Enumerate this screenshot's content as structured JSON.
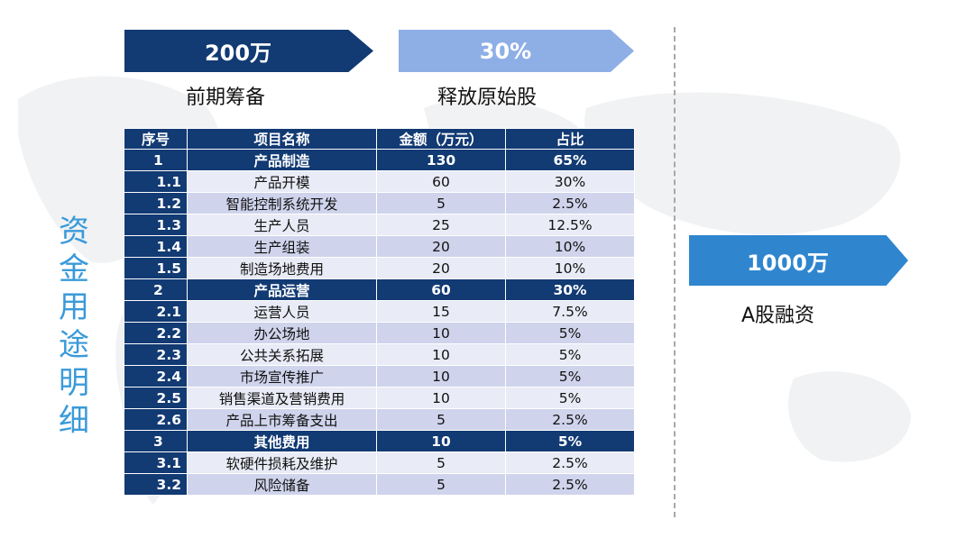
{
  "arrows": [
    {
      "value": "200万",
      "caption": "前期筹备"
    },
    {
      "value": "30%",
      "caption": "释放原始股"
    },
    {
      "value": "1000万",
      "caption": "A股融资"
    }
  ],
  "side_title": [
    "资",
    "金",
    "用",
    "途",
    "明",
    "细"
  ],
  "table": {
    "headers": [
      "序号",
      "项目名称",
      "金额（万元）",
      "占比"
    ],
    "rows": [
      {
        "no": "1",
        "name": "产品制造",
        "amount": "130",
        "ratio": "65%",
        "main": true
      },
      {
        "no": "1.1",
        "name": "产品开模",
        "amount": "60",
        "ratio": "30%",
        "main": false
      },
      {
        "no": "1.2",
        "name": "智能控制系统开发",
        "amount": "5",
        "ratio": "2.5%",
        "main": false
      },
      {
        "no": "1.3",
        "name": "生产人员",
        "amount": "25",
        "ratio": "12.5%",
        "main": false
      },
      {
        "no": "1.4",
        "name": "生产组装",
        "amount": "20",
        "ratio": "10%",
        "main": false
      },
      {
        "no": "1.5",
        "name": "制造场地费用",
        "amount": "20",
        "ratio": "10%",
        "main": false
      },
      {
        "no": "2",
        "name": "产品运营",
        "amount": "60",
        "ratio": "30%",
        "main": true
      },
      {
        "no": "2.1",
        "name": "运营人员",
        "amount": "15",
        "ratio": "7.5%",
        "main": false
      },
      {
        "no": "2.2",
        "name": "办公场地",
        "amount": "10",
        "ratio": "5%",
        "main": false
      },
      {
        "no": "2.3",
        "name": "公共关系拓展",
        "amount": "10",
        "ratio": "5%",
        "main": false
      },
      {
        "no": "2.4",
        "name": "市场宣传推广",
        "amount": "10",
        "ratio": "5%",
        "main": false
      },
      {
        "no": "2.5",
        "name": "销售渠道及营销费用",
        "amount": "10",
        "ratio": "5%",
        "main": false
      },
      {
        "no": "2.6",
        "name": "产品上市筹备支出",
        "amount": "5",
        "ratio": "2.5%",
        "main": false
      },
      {
        "no": "3",
        "name": "其他费用",
        "amount": "10",
        "ratio": "5%",
        "main": true
      },
      {
        "no": "3.1",
        "name": "软硬件损耗及维护",
        "amount": "5",
        "ratio": "2.5%",
        "main": false
      },
      {
        "no": "3.2",
        "name": "风险储备",
        "amount": "5",
        "ratio": "2.5%",
        "main": false
      }
    ]
  },
  "colors": {
    "dark_navy": "#123a73",
    "light_blue": "#8eaee6",
    "mid_blue": "#2f86cf",
    "title_blue": "#3a9ad9"
  }
}
